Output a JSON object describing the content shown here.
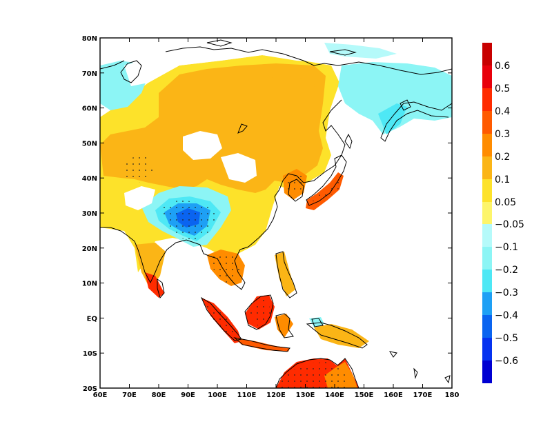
{
  "map": {
    "lon_range": [
      60,
      180
    ],
    "lat_range": [
      -20,
      80
    ],
    "x_ticks": [
      "60E",
      "70E",
      "80E",
      "90E",
      "100E",
      "110E",
      "120E",
      "130E",
      "140E",
      "150E",
      "160E",
      "170E",
      "180"
    ],
    "y_ticks": [
      "80N",
      "70N",
      "60N",
      "50N",
      "40N",
      "30N",
      "20N",
      "10N",
      "EQ",
      "10S",
      "20S"
    ],
    "stippling": "dots mark significant areas"
  },
  "colorbar": {
    "positive": [
      {
        "label": "0.6",
        "color": "#e8000b"
      },
      {
        "label": "0.5",
        "color": "#ff2b00"
      },
      {
        "label": "0.4",
        "color": "#ff5a00"
      },
      {
        "label": "0.3",
        "color": "#ff8c00"
      },
      {
        "label": "0.2",
        "color": "#fbb516"
      },
      {
        "label": "0.1",
        "color": "#fde22a"
      },
      {
        "label": "0.05",
        "color": "#fdf56b"
      }
    ],
    "positive_top_color": "#c80000",
    "negative": [
      {
        "label": "−0.05",
        "color": "#b5fafa"
      },
      {
        "label": "−0.1",
        "color": "#8cf5f5"
      },
      {
        "label": "−0.2",
        "color": "#4ee8f5"
      },
      {
        "label": "−0.3",
        "color": "#1ea0f5"
      },
      {
        "label": "−0.4",
        "color": "#0a64f0"
      },
      {
        "label": "−0.5",
        "color": "#0532f0"
      },
      {
        "label": "−0.6",
        "color": "#0000d2"
      }
    ]
  }
}
